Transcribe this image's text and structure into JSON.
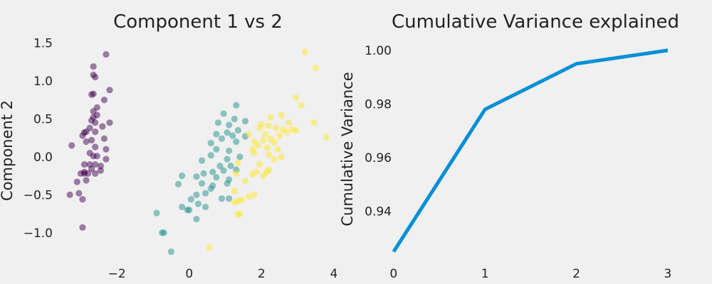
{
  "colors": {
    "background": "#f0f0f0",
    "line": "#008fd5",
    "class_0": "#440154",
    "class_1": "#21918c",
    "class_2": "#fde725",
    "text": "#222222"
  },
  "chart_data": [
    {
      "type": "scatter",
      "title": "Component 1 vs 2",
      "xlabel": "",
      "ylabel": "Component 2",
      "xlim": [
        -3.5,
        4.1
      ],
      "ylim": [
        -1.32,
        1.58
      ],
      "xticks": [
        -2,
        0,
        2,
        4
      ],
      "xtick_labels": [
        "−2",
        "0",
        "2",
        "4"
      ],
      "yticks": [
        -1.0,
        -0.5,
        0.0,
        0.5,
        1.0,
        1.5
      ],
      "ytick_labels": [
        "−1.0",
        "−0.5",
        "0.0",
        "0.5",
        "1.0",
        "1.5"
      ],
      "grid": false,
      "point_alpha": 0.5,
      "series": [
        {
          "color": "#440154",
          "points": [
            [
              -2.3,
              1.35
            ],
            [
              -2.65,
              1.19
            ],
            [
              -2.65,
              1.08
            ],
            [
              -2.6,
              1.05
            ],
            [
              -2.65,
              0.83
            ],
            [
              -2.7,
              0.82
            ],
            [
              -2.35,
              0.75
            ],
            [
              -2.2,
              0.88
            ],
            [
              -2.55,
              0.65
            ],
            [
              -2.65,
              0.6
            ],
            [
              -2.55,
              0.55
            ],
            [
              -2.65,
              0.52
            ],
            [
              -2.7,
              0.48
            ],
            [
              -2.6,
              0.45
            ],
            [
              -2.2,
              0.45
            ],
            [
              -2.4,
              0.4
            ],
            [
              -2.75,
              0.38
            ],
            [
              -2.85,
              0.33
            ],
            [
              -2.9,
              0.32
            ],
            [
              -2.6,
              0.33
            ],
            [
              -2.95,
              0.28
            ],
            [
              -2.7,
              0.22
            ],
            [
              -2.35,
              0.24
            ],
            [
              -2.85,
              0.2
            ],
            [
              -2.6,
              0.13
            ],
            [
              -2.3,
              0.1
            ],
            [
              -2.75,
              0.05
            ],
            [
              -2.65,
              0.01
            ],
            [
              -2.55,
              0.01
            ],
            [
              -2.3,
              -0.03
            ],
            [
              -3.25,
              0.15
            ],
            [
              -2.9,
              -0.1
            ],
            [
              -2.75,
              -0.1
            ],
            [
              -2.6,
              -0.1
            ],
            [
              -2.45,
              -0.12
            ],
            [
              -2.7,
              -0.16
            ],
            [
              -2.9,
              -0.2
            ],
            [
              -3.0,
              -0.22
            ],
            [
              -2.8,
              -0.22
            ],
            [
              -2.6,
              -0.22
            ],
            [
              -2.45,
              -0.18
            ],
            [
              -2.85,
              -0.31
            ],
            [
              -3.1,
              -0.33
            ],
            [
              -3.3,
              -0.5
            ],
            [
              -3.05,
              -0.48
            ],
            [
              -2.95,
              -0.56
            ],
            [
              -2.95,
              -0.93
            ],
            [
              -2.9,
              -0.22
            ]
          ]
        },
        {
          "color": "#21918c",
          "points": [
            [
              1.3,
              0.68
            ],
            [
              0.95,
              0.57
            ],
            [
              1.25,
              0.5
            ],
            [
              1.55,
              0.47
            ],
            [
              0.8,
              0.45
            ],
            [
              1.1,
              0.42
            ],
            [
              1.35,
              0.35
            ],
            [
              1.05,
              0.32
            ],
            [
              0.75,
              0.3
            ],
            [
              1.2,
              0.28
            ],
            [
              1.55,
              0.27
            ],
            [
              0.9,
              0.24
            ],
            [
              0.6,
              0.18
            ],
            [
              1.3,
              0.2
            ],
            [
              0.75,
              0.1
            ],
            [
              1.1,
              0.08
            ],
            [
              0.6,
              0.02
            ],
            [
              1.05,
              -0.03
            ],
            [
              1.4,
              0.0
            ],
            [
              0.35,
              -0.05
            ],
            [
              0.85,
              -0.12
            ],
            [
              1.15,
              -0.12
            ],
            [
              1.3,
              -0.17
            ],
            [
              0.65,
              -0.2
            ],
            [
              0.95,
              -0.18
            ],
            [
              0.4,
              -0.22
            ],
            [
              0.2,
              -0.26
            ],
            [
              0.75,
              -0.27
            ],
            [
              1.1,
              -0.3
            ],
            [
              -0.2,
              -0.25
            ],
            [
              0.35,
              -0.35
            ],
            [
              0.65,
              -0.38
            ],
            [
              1.05,
              -0.35
            ],
            [
              -0.3,
              -0.36
            ],
            [
              0.6,
              -0.42
            ],
            [
              0.45,
              -0.48
            ],
            [
              0.2,
              -0.5
            ],
            [
              0.05,
              -0.56
            ],
            [
              0.25,
              -0.62
            ],
            [
              0.9,
              -0.55
            ],
            [
              -0.2,
              -0.66
            ],
            [
              -0.05,
              -0.7
            ],
            [
              0.0,
              -0.7
            ],
            [
              0.45,
              -0.66
            ],
            [
              0.2,
              -0.82
            ],
            [
              -0.9,
              -0.74
            ],
            [
              -0.75,
              -1.0
            ],
            [
              -0.7,
              -1.0
            ],
            [
              -0.5,
              -1.25
            ],
            [
              1.1,
              -0.55
            ]
          ]
        },
        {
          "color": "#fde725",
          "points": [
            [
              3.2,
              1.38
            ],
            [
              3.5,
              1.17
            ],
            [
              2.95,
              0.78
            ],
            [
              3.1,
              0.68
            ],
            [
              2.55,
              0.55
            ],
            [
              2.25,
              0.52
            ],
            [
              2.75,
              0.45
            ],
            [
              3.45,
              0.45
            ],
            [
              2.0,
              0.43
            ],
            [
              2.2,
              0.41
            ],
            [
              1.95,
              0.38
            ],
            [
              2.4,
              0.38
            ],
            [
              2.6,
              0.36
            ],
            [
              2.85,
              0.36
            ],
            [
              2.95,
              0.35
            ],
            [
              2.7,
              0.32
            ],
            [
              2.1,
              0.3
            ],
            [
              1.65,
              0.3
            ],
            [
              2.5,
              0.28
            ],
            [
              3.8,
              0.26
            ],
            [
              2.25,
              0.24
            ],
            [
              2.05,
              0.22
            ],
            [
              1.8,
              0.2
            ],
            [
              2.35,
              0.19
            ],
            [
              1.9,
              0.15
            ],
            [
              2.15,
              0.12
            ],
            [
              1.75,
              0.1
            ],
            [
              2.45,
              0.1
            ],
            [
              1.8,
              0.05
            ],
            [
              2.2,
              0.03
            ],
            [
              2.55,
              0.0
            ],
            [
              2.35,
              -0.03
            ],
            [
              1.35,
              -0.08
            ],
            [
              1.95,
              -0.1
            ],
            [
              2.2,
              -0.17
            ],
            [
              1.85,
              -0.2
            ],
            [
              2.15,
              -0.2
            ],
            [
              1.3,
              -0.22
            ],
            [
              1.75,
              -0.23
            ],
            [
              1.55,
              -0.32
            ],
            [
              1.25,
              -0.45
            ],
            [
              1.8,
              -0.5
            ],
            [
              1.65,
              -0.52
            ],
            [
              1.35,
              -0.58
            ],
            [
              1.25,
              -0.6
            ],
            [
              1.4,
              -0.75
            ],
            [
              1.35,
              -0.76
            ],
            [
              0.55,
              -1.19
            ],
            [
              1.45,
              -0.57
            ],
            [
              2.05,
              -0.25
            ]
          ]
        }
      ]
    },
    {
      "type": "line",
      "title": "Cumulative Variance explained",
      "xlabel": "",
      "ylabel": "Cumulative Variance",
      "xlim": [
        -0.1,
        3.25
      ],
      "ylim": [
        0.923,
        1.005
      ],
      "xticks": [
        0,
        1,
        2,
        3
      ],
      "xtick_labels": [
        "0",
        "1",
        "2",
        "3"
      ],
      "yticks": [
        0.94,
        0.96,
        0.98,
        1.0
      ],
      "ytick_labels": [
        "0.94",
        "0.96",
        "0.98",
        "1.00"
      ],
      "grid": false,
      "x": [
        0,
        1,
        2,
        3
      ],
      "y": [
        0.925,
        0.978,
        0.995,
        1.0
      ]
    }
  ]
}
